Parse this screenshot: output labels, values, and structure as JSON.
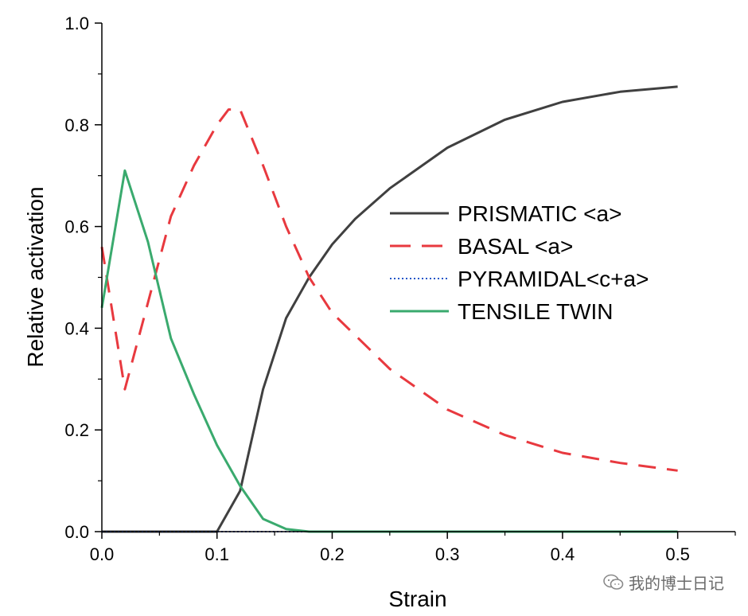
{
  "chart_data": {
    "type": "line",
    "title": "",
    "xlabel": "Strain",
    "ylabel": "Relative activation",
    "xlim": [
      0,
      0.55
    ],
    "ylim": [
      0,
      1.0
    ],
    "xticks": [
      0.0,
      0.1,
      0.2,
      0.3,
      0.4,
      0.5
    ],
    "xtick_labels": [
      "0.0",
      "0.1",
      "0.2",
      "0.3",
      "0.4",
      "0.5"
    ],
    "yticks": [
      0.0,
      0.2,
      0.4,
      0.6,
      0.8,
      1.0
    ],
    "ytick_labels": [
      "0.0",
      "0.2",
      "0.4",
      "0.6",
      "0.8",
      "1.0"
    ],
    "grid": false,
    "legend_position": "center-right",
    "series": [
      {
        "name": "PRISMATIC <a>",
        "color": "#404040",
        "style": "solid",
        "x": [
          0.0,
          0.02,
          0.04,
          0.06,
          0.08,
          0.1,
          0.12,
          0.14,
          0.16,
          0.18,
          0.2,
          0.22,
          0.25,
          0.3,
          0.35,
          0.4,
          0.45,
          0.5
        ],
        "y": [
          0.0,
          0.0,
          0.0,
          0.0,
          0.0,
          0.0,
          0.08,
          0.28,
          0.42,
          0.5,
          0.565,
          0.615,
          0.675,
          0.755,
          0.81,
          0.845,
          0.865,
          0.875
        ]
      },
      {
        "name": "BASAL <a>",
        "color": "#e8393f",
        "style": "dashed",
        "x": [
          0.0,
          0.02,
          0.04,
          0.06,
          0.08,
          0.1,
          0.11,
          0.12,
          0.14,
          0.16,
          0.18,
          0.2,
          0.25,
          0.3,
          0.35,
          0.4,
          0.45,
          0.5
        ],
        "y": [
          0.56,
          0.28,
          0.45,
          0.62,
          0.72,
          0.8,
          0.83,
          0.83,
          0.72,
          0.6,
          0.5,
          0.43,
          0.32,
          0.24,
          0.19,
          0.155,
          0.135,
          0.12
        ]
      },
      {
        "name": "PYRAMIDAL<c+a>",
        "color": "#2056c8",
        "style": "dotted",
        "x": [
          0.0,
          0.1,
          0.2,
          0.3,
          0.4,
          0.5
        ],
        "y": [
          0.0,
          0.0,
          0.0,
          0.0,
          0.0,
          0.0
        ]
      },
      {
        "name": "TENSILE TWIN",
        "color": "#3aaa6e",
        "style": "solid",
        "x": [
          0.0,
          0.02,
          0.04,
          0.06,
          0.08,
          0.1,
          0.12,
          0.14,
          0.16,
          0.18,
          0.2,
          0.3,
          0.4,
          0.5
        ],
        "y": [
          0.44,
          0.71,
          0.57,
          0.38,
          0.27,
          0.17,
          0.09,
          0.025,
          0.005,
          0.0,
          0.0,
          0.0,
          0.0,
          0.0
        ]
      }
    ]
  },
  "watermark": {
    "icon": "wechat-icon",
    "text": "我的博士日记"
  }
}
